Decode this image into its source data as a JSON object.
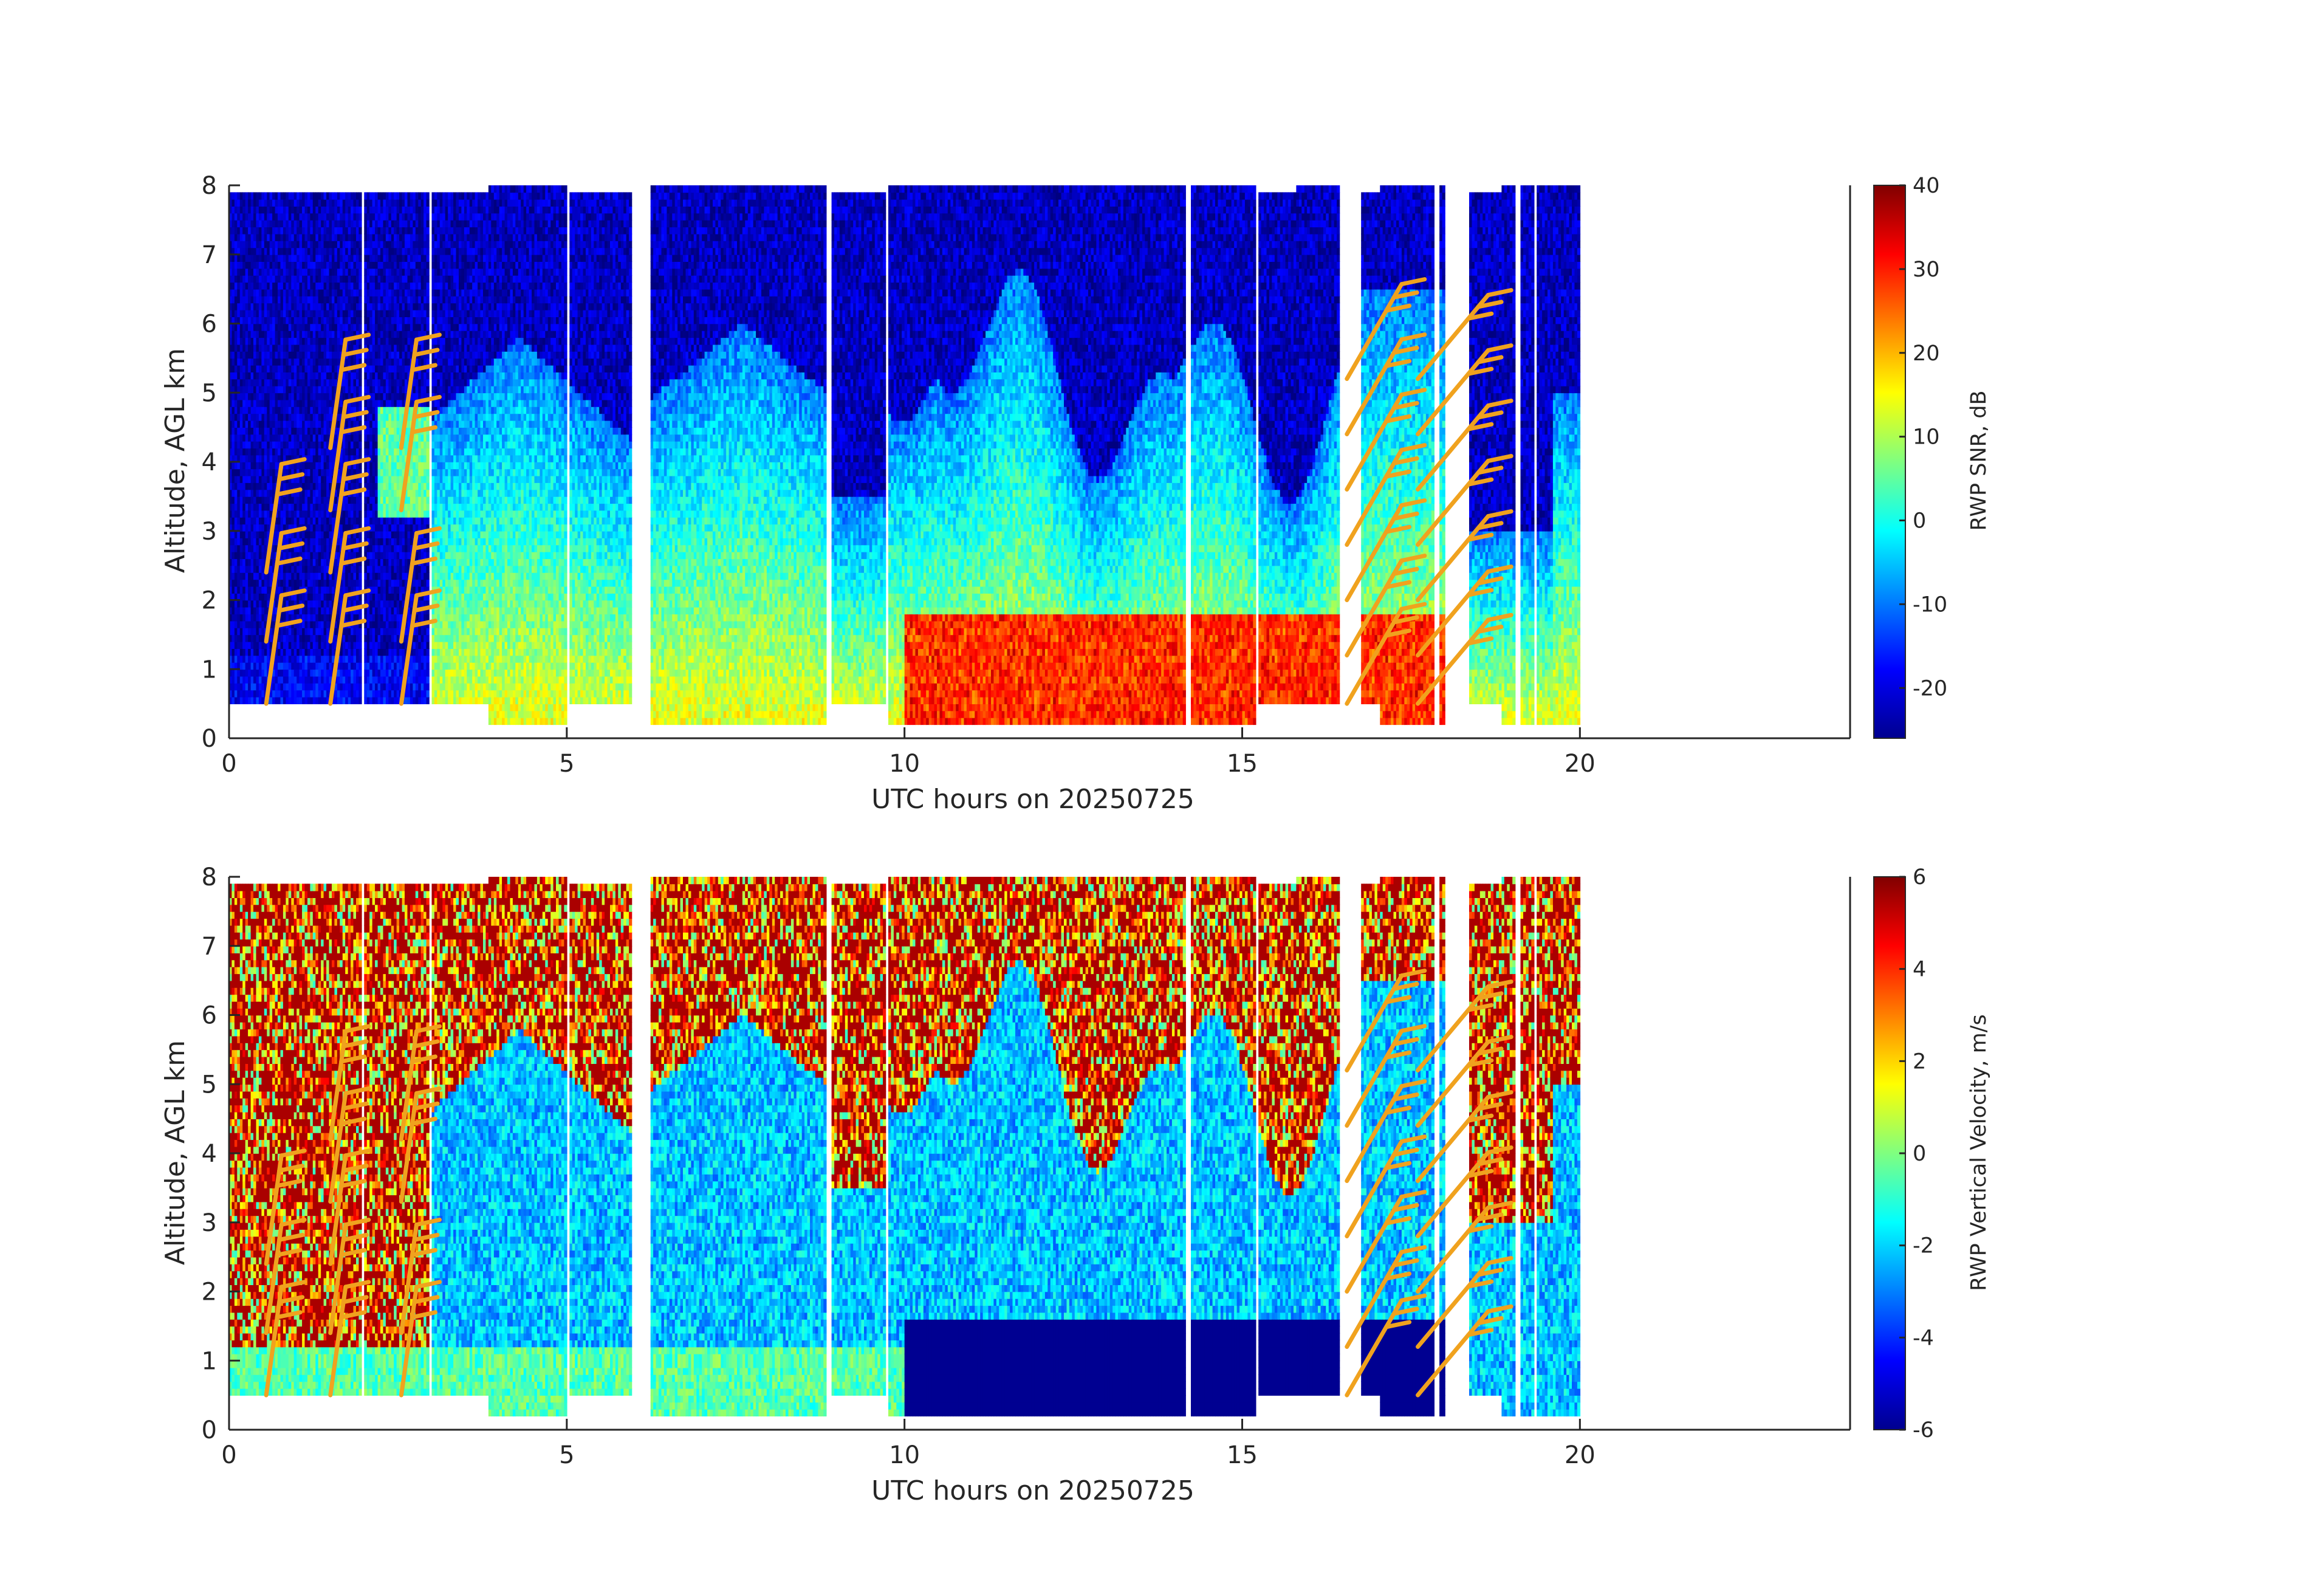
{
  "chart_data": [
    {
      "type": "heatmap",
      "xlabel": "UTC hours on 20250725",
      "ylabel": "Altitude, AGL km",
      "xlim": [
        0,
        24
      ],
      "ylim": [
        0,
        8
      ],
      "xticks": [
        "0",
        "5",
        "10",
        "15",
        "20"
      ],
      "yticks": [
        "0",
        "1",
        "2",
        "3",
        "4",
        "5",
        "6",
        "7",
        "8"
      ],
      "colorbar": {
        "label": "RWP SNR, dB",
        "range": [
          -26,
          40
        ],
        "ticks": [
          "-20",
          "-10",
          "0",
          "10",
          "20",
          "30",
          "40"
        ],
        "colormap": "jet"
      },
      "wind_barbs": true,
      "barb_color": "#F0A21E"
    },
    {
      "type": "heatmap",
      "xlabel": "UTC hours on 20250725",
      "ylabel": "Altitude, AGL km",
      "xlim": [
        0,
        24
      ],
      "ylim": [
        0,
        8
      ],
      "xticks": [
        "0",
        "5",
        "10",
        "15",
        "20"
      ],
      "yticks": [
        "0",
        "1",
        "2",
        "3",
        "4",
        "5",
        "6",
        "7",
        "8"
      ],
      "colorbar": {
        "label": "RWP Vertical Velocity, m/s",
        "range": [
          -6,
          6
        ],
        "ticks": [
          "-6",
          "-4",
          "-2",
          "0",
          "2",
          "4",
          "6"
        ],
        "colormap": "jet"
      },
      "wind_barbs": true,
      "barb_color": "#F0A21E"
    }
  ]
}
